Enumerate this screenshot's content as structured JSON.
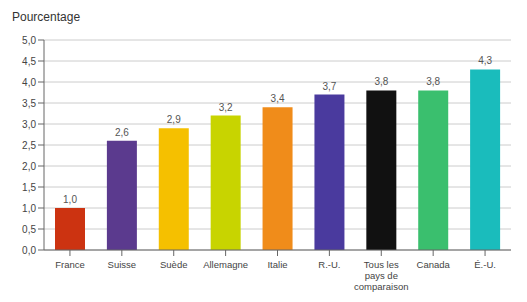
{
  "chart_data": {
    "type": "bar",
    "ylabel": "Pourcentage",
    "categories": [
      "France",
      "Suisse",
      "Suède",
      "Allemagne",
      "Italie",
      "R.-U.",
      "Tous les\npays de\ncomparaison",
      "Canada",
      "É.-U."
    ],
    "values": [
      1.0,
      2.6,
      2.9,
      3.2,
      3.4,
      3.7,
      3.8,
      3.8,
      4.3
    ],
    "value_labels": [
      "1,0",
      "2,6",
      "2,9",
      "3,2",
      "3,4",
      "3,7",
      "3,8",
      "3,8",
      "4,3"
    ],
    "colors": [
      "#cc3311",
      "#5b3a8e",
      "#f5c000",
      "#c8d400",
      "#f08c1a",
      "#4a3a9e",
      "#111111",
      "#3abf6e",
      "#1abcbc"
    ],
    "ylim": [
      0,
      5.0
    ],
    "yticks": [
      {
        "value": 0.0,
        "label": "0,0"
      },
      {
        "value": 0.5,
        "label": "0,5"
      },
      {
        "value": 1.0,
        "label": "1,0"
      },
      {
        "value": 1.5,
        "label": "1,5"
      },
      {
        "value": 2.0,
        "label": "2,0"
      },
      {
        "value": 2.5,
        "label": "2,5"
      },
      {
        "value": 3.0,
        "label": "3,0"
      },
      {
        "value": 3.5,
        "label": "3,5"
      },
      {
        "value": 4.0,
        "label": "4,0"
      },
      {
        "value": 4.5,
        "label": "4,5"
      },
      {
        "value": 5.0,
        "label": "5,0"
      }
    ],
    "grid": true,
    "data_labels": true
  }
}
